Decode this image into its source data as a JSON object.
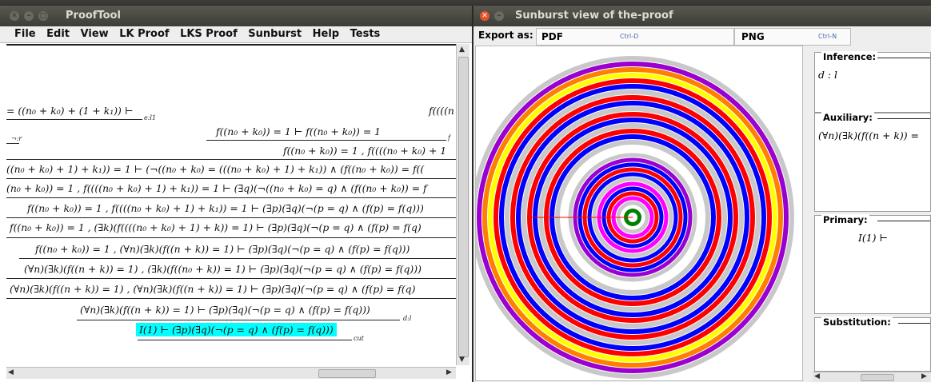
{
  "proof_window": {
    "title": "ProofTool",
    "menu": [
      "File",
      "Edit",
      "View",
      "LK Proof",
      "LKS Proof",
      "Sunburst",
      "Help",
      "Tests"
    ],
    "lines": [
      "= ((n₀ + k₀) + (1 + k₁)) ⊢",
      "f((((n",
      "f((n₀ + k₀)) = 1 ⊢ f((n₀ + k₀)) = 1",
      "f((n₀ + k₀)) = 1 , f((((n₀ + k₀) + 1",
      "((n₀ + k₀) + 1) + k₁)) = 1 ⊢ (¬((n₀ + k₀) = (((n₀ + k₀) + 1) + k₁)) ∧ (f((n₀ + k₀)) = f((",
      "(n₀ + k₀)) = 1 , f((((n₀ + k₀) + 1) + k₁)) = 1 ⊢ (∃q)(¬((n₀ + k₀) = q) ∧ (f((n₀ + k₀)) = f",
      "f((n₀ + k₀)) = 1 , f((((n₀ + k₀) + 1) + k₁)) = 1 ⊢ (∃p)(∃q)(¬(p = q) ∧ (f(p) = f(q)))",
      "f((n₀ + k₀)) = 1 , (∃k)(f((((n₀ + k₀) + 1) + k)) = 1) ⊢ (∃p)(∃q)(¬(p = q) ∧ (f(p) = f(q)",
      "f((n₀ + k₀)) = 1 , (∀n)(∃k)(f((n + k)) = 1) ⊢ (∃p)(∃q)(¬(p = q) ∧ (f(p) = f(q)))",
      "(∀n)(∃k)(f((n + k)) = 1) , (∃k)(f((n₀ + k)) = 1) ⊢ (∃p)(∃q)(¬(p = q) ∧ (f(p) = f(q)))",
      "(∀n)(∃k)(f((n + k)) = 1) , (∀n)(∃k)(f((n + k)) = 1) ⊢ (∃p)(∃q)(¬(p = q) ∧ (f(p) = f(q)",
      "(∀n)(∃k)(f((n + k)) = 1) ⊢ (∃p)(∃q)(¬(p = q) ∧ (f(p) = f(q)))",
      "I(1) ⊢ (∃p)(∃q)(¬(p = q) ∧ (f(p) = f(q)))"
    ],
    "rule_labels": [
      "e:l1",
      "¬:r",
      "d:l",
      "cut",
      "f"
    ]
  },
  "sunburst_window": {
    "title": "Sunburst view of the-proof",
    "export_label": "Export as:",
    "pdf_label": "PDF",
    "pdf_shortcut": "Ctrl-D",
    "png_label": "PNG",
    "png_shortcut": "Ctrl-N",
    "colors": {
      "gray": "#c8c8c8",
      "purple": "#9a00d0",
      "orange": "#ff7f00",
      "yellow": "#ffff00",
      "red": "#ff0000",
      "blue": "#0000ff",
      "magenta": "#ff00ff",
      "green": "#008000"
    },
    "inference_title": "Inference:",
    "inference_value": "d : l",
    "auxiliary_title": "Auxiliary:",
    "auxiliary_value": "(∀n)(∃k)(f((n + k)) =",
    "primary_title": "Primary:",
    "primary_value": "I(1) ⊢",
    "substitution_title": "Substitution:"
  }
}
